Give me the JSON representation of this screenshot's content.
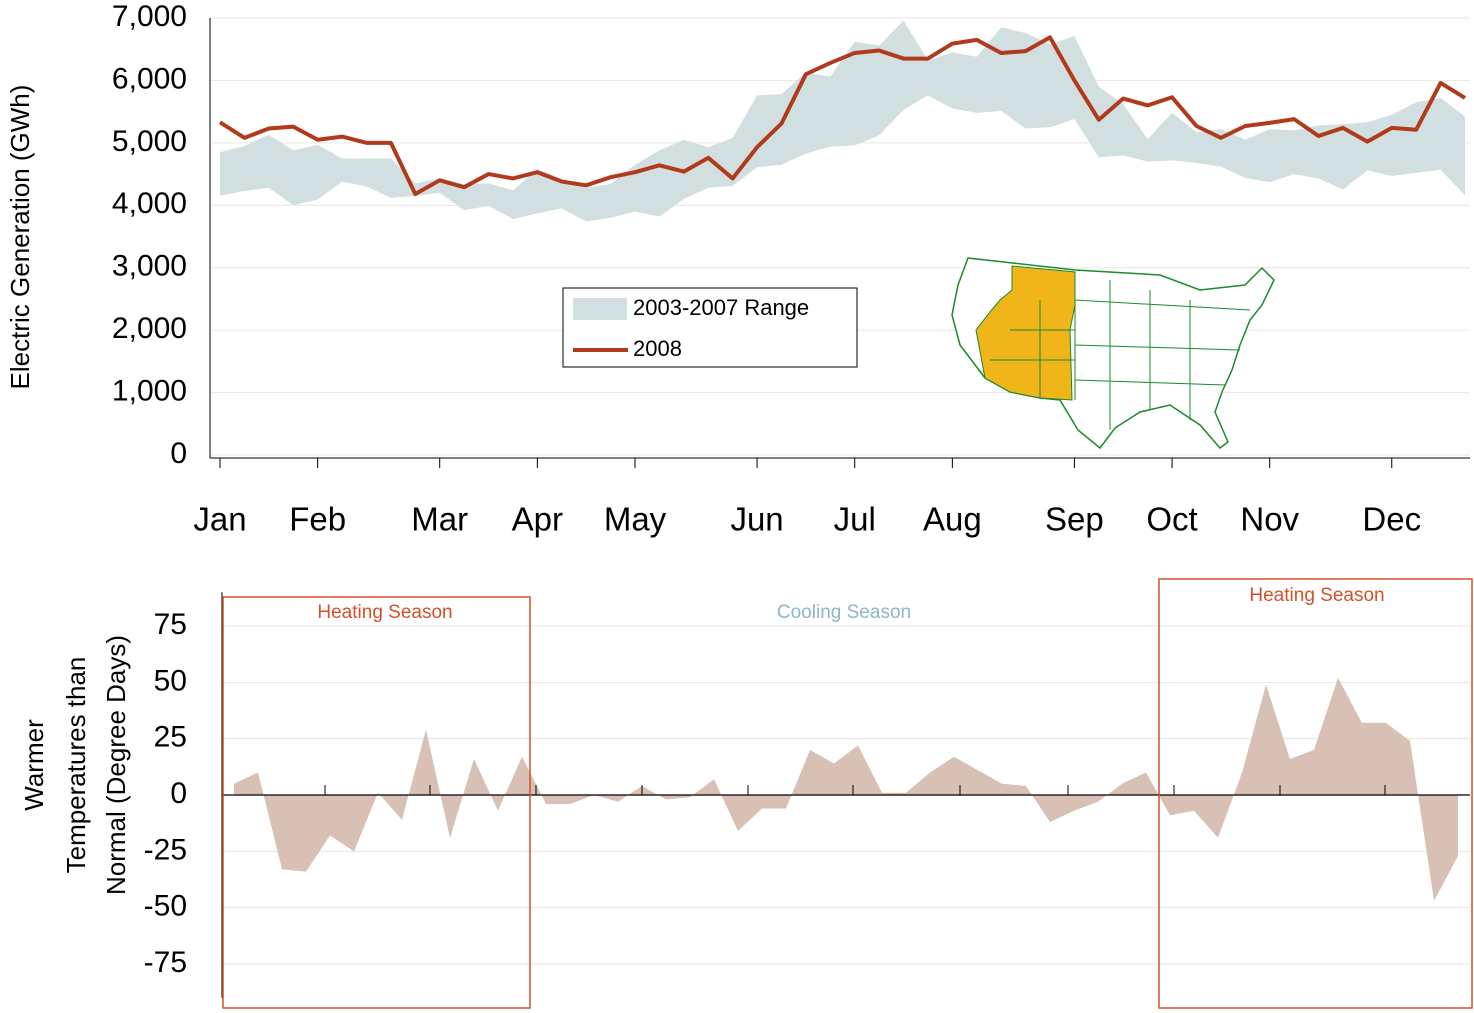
{
  "chart_data": [
    {
      "type": "line",
      "ylabel": "Electric Generation (GWh)",
      "categories": [
        "Jan",
        null,
        null,
        null,
        "Feb",
        null,
        null,
        null,
        null,
        "Mar",
        null,
        null,
        null,
        "Apr",
        null,
        null,
        null,
        "May",
        null,
        null,
        null,
        null,
        "Jun",
        null,
        null,
        null,
        "Jul",
        null,
        null,
        null,
        "Aug",
        null,
        null,
        null,
        null,
        "Sep",
        null,
        null,
        null,
        "Oct",
        null,
        null,
        null,
        "Nov",
        null,
        null,
        null,
        null,
        "Dec",
        null,
        null,
        null
      ],
      "ylim": [
        0,
        7000
      ],
      "yticks": [
        0,
        {
          "value": 1000,
          "label": "1,000"
        },
        {
          "value": 2000,
          "label": "2,000"
        },
        {
          "value": 3000,
          "label": "3,000"
        },
        {
          "value": 4000,
          "label": "4,000"
        },
        {
          "value": 5000,
          "label": "5,000"
        },
        {
          "value": 6000,
          "label": "6,000"
        },
        {
          "value": 7000,
          "label": "7,000"
        }
      ],
      "grid": true,
      "series": [
        {
          "name": "2003-2007 Range",
          "type": "band",
          "color": "#d2dfe0",
          "high": [
            4850,
            4950,
            5130,
            4880,
            4970,
            4750,
            4750,
            4750,
            4350,
            4430,
            4340,
            4350,
            4240,
            4580,
            4430,
            4280,
            4340,
            4650,
            4880,
            5050,
            4930,
            5080,
            5760,
            5780,
            6130,
            6060,
            6620,
            6560,
            6960,
            6320,
            6450,
            6380,
            6850,
            6760,
            6580,
            6710,
            5900,
            5620,
            5060,
            5480,
            5170,
            5220,
            5050,
            5220,
            5200,
            5280,
            5300,
            5330,
            5450,
            5650,
            5720,
            5420
          ],
          "low": [
            4150,
            4230,
            4280,
            4000,
            4090,
            4380,
            4300,
            4120,
            4150,
            4200,
            3920,
            3990,
            3780,
            3870,
            3950,
            3740,
            3800,
            3900,
            3820,
            4100,
            4280,
            4310,
            4610,
            4650,
            4830,
            4940,
            4960,
            5120,
            5530,
            5760,
            5550,
            5480,
            5510,
            5230,
            5250,
            5380,
            4770,
            4800,
            4700,
            4720,
            4680,
            4620,
            4440,
            4370,
            4500,
            4430,
            4250,
            4560,
            4470,
            4520,
            4570,
            4160
          ]
        },
        {
          "name": "2008",
          "type": "line",
          "color": "#b23a1c",
          "values": [
            5330,
            5080,
            5230,
            5260,
            5050,
            5100,
            5000,
            5000,
            4180,
            4400,
            4290,
            4500,
            4430,
            4530,
            4380,
            4320,
            4450,
            4530,
            4640,
            4540,
            4760,
            4430,
            4930,
            5310,
            6100,
            6280,
            6440,
            6480,
            6350,
            6350,
            6590,
            6650,
            6440,
            6470,
            6690,
            6000,
            5370,
            5710,
            5600,
            5730,
            5270,
            5080,
            5270,
            5320,
            5380,
            5110,
            5240,
            5020,
            5240,
            5210,
            5960,
            5720
          ]
        }
      ]
    },
    {
      "type": "area",
      "ylabel": [
        "Warmer",
        "Temperatures than",
        "Normal (Degree Days)"
      ],
      "ylim": [
        -90,
        90
      ],
      "yticks": [
        -75,
        -50,
        -25,
        0,
        25,
        50,
        75
      ],
      "grid": true,
      "color": "#d8c1b4",
      "values": [
        5,
        10,
        -33,
        -34,
        -18,
        -25,
        1,
        -11,
        29,
        -19,
        16,
        -7,
        17,
        -4,
        -4,
        0,
        -3,
        4,
        -2,
        -1,
        7,
        -16,
        -6,
        -6,
        20,
        14,
        22,
        1,
        1,
        10,
        17,
        11,
        5,
        4,
        -12,
        -7,
        -3,
        5,
        10,
        -9,
        -7,
        -19,
        10,
        49,
        16,
        20,
        52,
        32,
        32,
        24,
        -47,
        -27
      ],
      "annotations": [
        "Heating Season",
        "Cooling Season",
        "Heating Season"
      ]
    }
  ]
}
